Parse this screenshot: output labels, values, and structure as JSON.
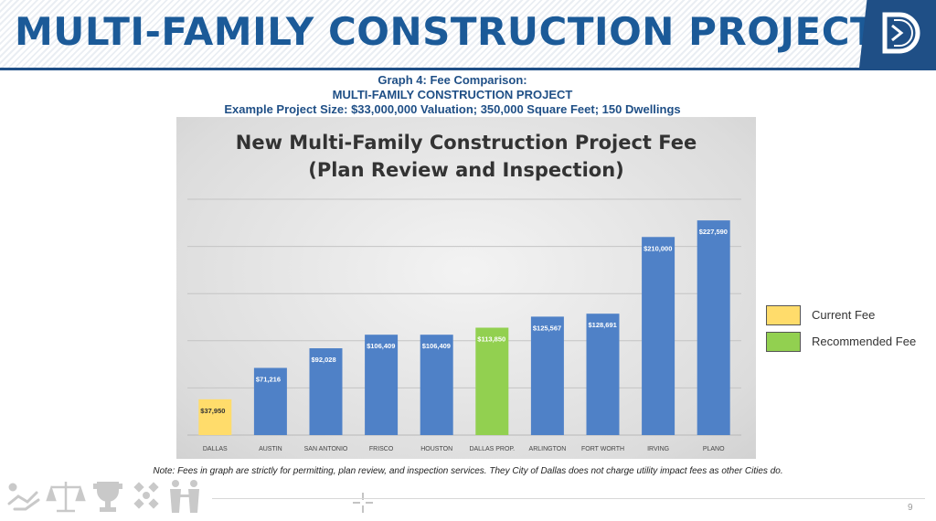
{
  "header": {
    "title": "MULTI-FAMILY CONSTRUCTION PROJECT"
  },
  "subtitle": {
    "line1": "Graph 4: Fee Comparison:",
    "line2": "MULTI-FAMILY CONSTRUCTION PROJECT",
    "line3": "Example Project Size: $33,000,000 Valuation; 350,000 Square Feet; 150 Dwellings"
  },
  "chart_data": {
    "type": "bar",
    "title_line1": "New Multi-Family Construction Project Fee",
    "title_line2": "(Plan Review and Inspection)",
    "categories": [
      "DALLAS",
      "AUSTIN",
      "SAN ANTONIO",
      "FRISCO",
      "HOUSTON",
      "DALLAS PROP.",
      "ARLINGTON",
      "FORT WORTH",
      "IRVING",
      "PLANO"
    ],
    "values": [
      37950,
      71216,
      92028,
      106409,
      106409,
      113850,
      125567,
      128691,
      210000,
      227590
    ],
    "data_labels": [
      "$37,950",
      "$71,216",
      "$92,028",
      "$106,409",
      "$106,409",
      "$113,850",
      "$125,567",
      "$128,691",
      "$210,000",
      "$227,590"
    ],
    "bar_colors": [
      "#ffdc6b",
      "#4f81c7",
      "#4f81c7",
      "#4f81c7",
      "#4f81c7",
      "#92d050",
      "#4f81c7",
      "#4f81c7",
      "#4f81c7",
      "#4f81c7"
    ],
    "ylim": [
      0,
      250000
    ],
    "grid": true,
    "legend": [
      {
        "label": "Current Fee",
        "color": "#ffdc6b"
      },
      {
        "label": "Recommended Fee",
        "color": "#92d050"
      }
    ],
    "legend_position": "right"
  },
  "note": "Note: Fees in graph are strictly for permitting, plan review, and inspection services. They City of Dallas does not charge utility impact fees as other Cities do.",
  "footer": {
    "page_number": "9",
    "icons": [
      "handshake-icon",
      "scales-of-justice-icon",
      "trophy-icon",
      "diversity-icon",
      "people-icon"
    ]
  },
  "colors": {
    "brand_blue": "#1b5a98",
    "dark_blue": "#1f4f86"
  }
}
